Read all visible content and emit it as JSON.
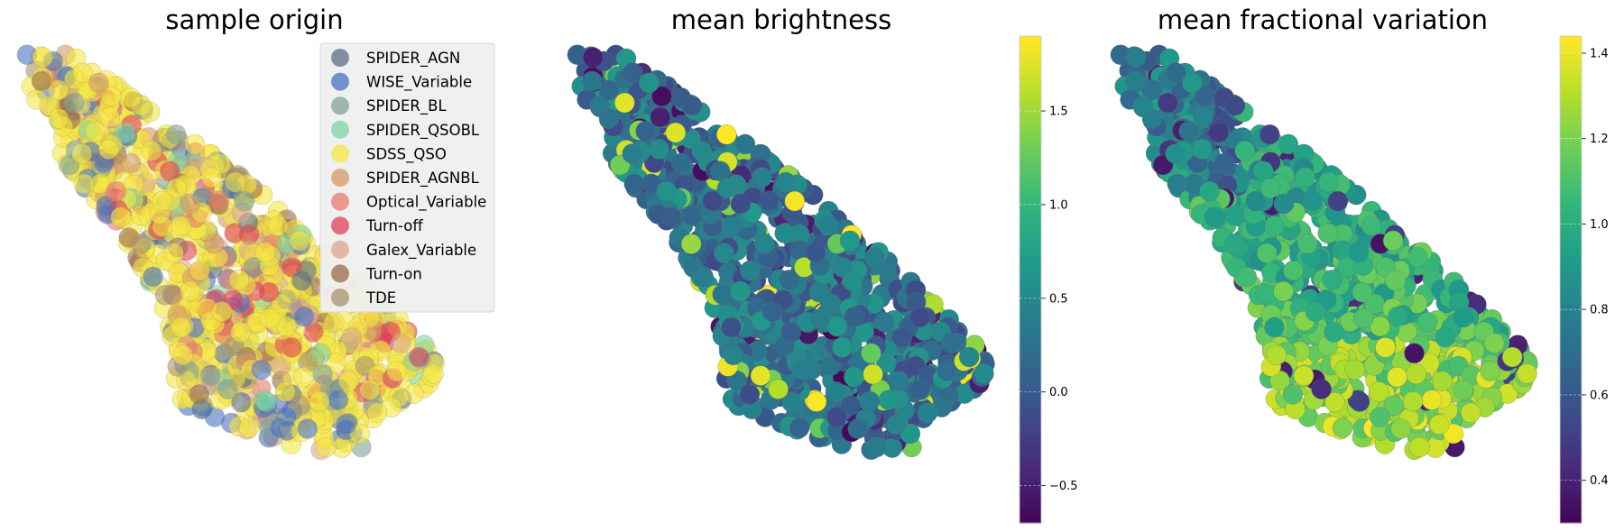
{
  "chart_data": [
    {
      "type": "scatter",
      "title": "sample origin",
      "xlabel": "",
      "ylabel": "",
      "grid": false,
      "axes_visible": false,
      "legend_placement": "top-right",
      "legend": [
        {
          "name": "SPIDER_AGN",
          "color": "#5a6f8a"
        },
        {
          "name": "WISE_Variable",
          "color": "#4a72c4"
        },
        {
          "name": "SPIDER_BL",
          "color": "#7fa29a"
        },
        {
          "name": "SPIDER_QSOBL",
          "color": "#7fd6a4"
        },
        {
          "name": "SDSS_QSO",
          "color": "#f5e642"
        },
        {
          "name": "SPIDER_AGNBL",
          "color": "#d49a6a"
        },
        {
          "name": "Optical_Variable",
          "color": "#e67a72"
        },
        {
          "name": "Turn-off",
          "color": "#e0405a"
        },
        {
          "name": "Galex_Variable",
          "color": "#dca690"
        },
        {
          "name": "Turn-on",
          "color": "#9a6a4e"
        },
        {
          "name": "TDE",
          "color": "#a69470"
        }
      ]
    },
    {
      "type": "scatter",
      "title": "mean brightness",
      "xlabel": "",
      "ylabel": "",
      "grid": false,
      "axes_visible": false,
      "colormap": "viridis",
      "colorbar": {
        "min": -0.7,
        "max": 1.9,
        "ticks": [
          -0.5,
          0.0,
          0.5,
          1.0,
          1.5
        ],
        "tick_labels": [
          "−0.5",
          "0.0",
          "0.5",
          "1.0",
          "1.5"
        ]
      }
    },
    {
      "type": "scatter",
      "title": "mean fractional variation",
      "xlabel": "",
      "ylabel": "",
      "grid": false,
      "axes_visible": false,
      "colormap": "viridis",
      "colorbar": {
        "min": 0.3,
        "max": 1.44,
        "ticks": [
          0.4,
          0.6,
          0.8,
          1.0,
          1.2,
          1.4
        ],
        "tick_labels": [
          "0.4",
          "0.6",
          "0.8",
          "1.0",
          "1.2",
          "1.4"
        ]
      }
    }
  ]
}
